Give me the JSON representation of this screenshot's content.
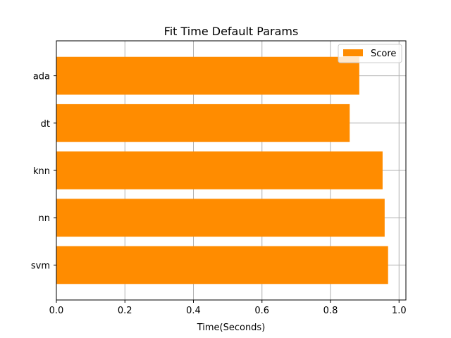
{
  "chart_data": {
    "type": "bar",
    "orientation": "horizontal",
    "title": "Fit Time Default Params",
    "xlabel": "Time(Seconds)",
    "ylabel": "",
    "categories": [
      "ada",
      "dt",
      "knn",
      "nn",
      "svm"
    ],
    "series": [
      {
        "name": "Score",
        "values": [
          0.884,
          0.856,
          0.952,
          0.958,
          0.968
        ]
      }
    ],
    "xlim": [
      0.0,
      1.02
    ],
    "xticks": [
      "0.0",
      "0.2",
      "0.4",
      "0.6",
      "0.8",
      "1.0"
    ],
    "grid": true,
    "legend_position": "top-right",
    "bar_color": "#ff8c00",
    "grid_color": "#b0b0b0"
  }
}
